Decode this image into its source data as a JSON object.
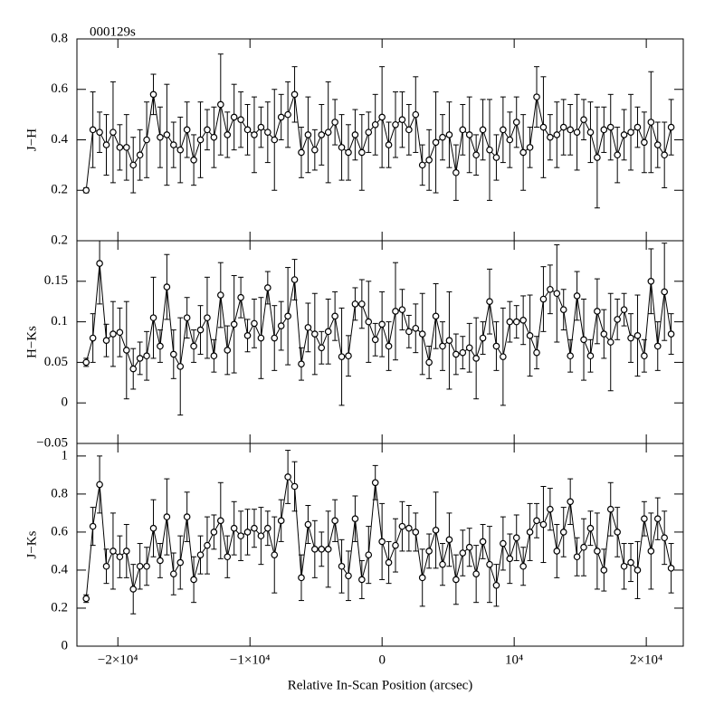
{
  "chart_data": [
    {
      "type": "errorbar",
      "title": "000129s",
      "ylabel": "J−H",
      "color": "#000000",
      "xlim": [
        -23100,
        22800
      ],
      "ylim": [
        0,
        0.8
      ],
      "yticks": [
        0.2,
        0.4,
        0.6,
        0.8
      ],
      "x": [
        -22400,
        -21891,
        -21382,
        -20873,
        -20364,
        -19855,
        -19346,
        -18837,
        -18328,
        -17819,
        -17310,
        -16801,
        -16292,
        -15783,
        -15274,
        -14765,
        -14256,
        -13747,
        -13238,
        -12729,
        -12220,
        -11711,
        -11202,
        -10693,
        -10184,
        -9675,
        -9166,
        -8657,
        -8148,
        -7639,
        -7130,
        -6621,
        -6112,
        -5603,
        -5094,
        -4585,
        -4076,
        -3567,
        -3058,
        -2549,
        -2040,
        -1531,
        -1022,
        -513,
        -4,
        505,
        1014,
        1523,
        2032,
        2541,
        3050,
        3559,
        4068,
        4577,
        5086,
        5595,
        6104,
        6613,
        7122,
        7631,
        8140,
        8649,
        9158,
        9667,
        10176,
        10685,
        11194,
        11703,
        12212,
        12721,
        13230,
        13739,
        14248,
        14757,
        15266,
        15775,
        16284,
        16793,
        17302,
        17811,
        18320,
        18829,
        19338,
        19847,
        20356,
        20865,
        21374,
        21883
      ],
      "values": [
        0.2,
        0.44,
        0.43,
        0.38,
        0.43,
        0.37,
        0.37,
        0.3,
        0.34,
        0.4,
        0.58,
        0.41,
        0.42,
        0.38,
        0.36,
        0.44,
        0.32,
        0.4,
        0.44,
        0.41,
        0.54,
        0.42,
        0.49,
        0.48,
        0.44,
        0.42,
        0.45,
        0.43,
        0.4,
        0.49,
        0.5,
        0.58,
        0.35,
        0.42,
        0.36,
        0.42,
        0.43,
        0.47,
        0.37,
        0.35,
        0.42,
        0.35,
        0.43,
        0.46,
        0.49,
        0.38,
        0.46,
        0.48,
        0.44,
        0.5,
        0.3,
        0.32,
        0.39,
        0.41,
        0.42,
        0.27,
        0.44,
        0.42,
        0.34,
        0.44,
        0.36,
        0.33,
        0.44,
        0.4,
        0.47,
        0.35,
        0.37,
        0.57,
        0.45,
        0.41,
        0.42,
        0.45,
        0.44,
        0.43,
        0.48,
        0.43,
        0.33,
        0.44,
        0.45,
        0.34,
        0.42,
        0.43,
        0.45,
        0.39,
        0.47,
        0.38,
        0.34,
        0.45
      ],
      "errors": [
        0.01,
        0.15,
        0.08,
        0.12,
        0.2,
        0.09,
        0.13,
        0.11,
        0.1,
        0.15,
        0.08,
        0.12,
        0.2,
        0.09,
        0.13,
        0.11,
        0.1,
        0.15,
        0.08,
        0.12,
        0.2,
        0.09,
        0.13,
        0.11,
        0.1,
        0.15,
        0.08,
        0.12,
        0.2,
        0.09,
        0.13,
        0.11,
        0.1,
        0.15,
        0.08,
        0.12,
        0.2,
        0.09,
        0.13,
        0.11,
        0.1,
        0.15,
        0.08,
        0.12,
        0.2,
        0.09,
        0.13,
        0.11,
        0.1,
        0.15,
        0.08,
        0.12,
        0.2,
        0.09,
        0.13,
        0.11,
        0.1,
        0.15,
        0.08,
        0.12,
        0.2,
        0.09,
        0.13,
        0.11,
        0.1,
        0.15,
        0.08,
        0.12,
        0.2,
        0.09,
        0.13,
        0.11,
        0.1,
        0.15,
        0.08,
        0.12,
        0.2,
        0.09,
        0.13,
        0.11,
        0.1,
        0.15,
        0.08,
        0.12,
        0.2,
        0.09,
        0.13,
        0.11
      ]
    },
    {
      "type": "errorbar",
      "ylabel": "H−Ks",
      "color": "#000000",
      "xlim": [
        -23100,
        22800
      ],
      "ylim": [
        -0.05,
        0.2
      ],
      "yticks": [
        {
          "value": -0.05,
          "label": "−0.05"
        },
        0,
        0.05,
        0.1,
        0.15,
        0.2
      ],
      "x": [
        -22400,
        -21891,
        -21382,
        -20873,
        -20364,
        -19855,
        -19346,
        -18837,
        -18328,
        -17819,
        -17310,
        -16801,
        -16292,
        -15783,
        -15274,
        -14765,
        -14256,
        -13747,
        -13238,
        -12729,
        -12220,
        -11711,
        -11202,
        -10693,
        -10184,
        -9675,
        -9166,
        -8657,
        -8148,
        -7639,
        -7130,
        -6621,
        -6112,
        -5603,
        -5094,
        -4585,
        -4076,
        -3567,
        -3058,
        -2549,
        -2040,
        -1531,
        -1022,
        -513,
        -4,
        505,
        1014,
        1523,
        2032,
        2541,
        3050,
        3559,
        4068,
        4577,
        5086,
        5595,
        6104,
        6613,
        7122,
        7631,
        8140,
        8649,
        9158,
        9667,
        10176,
        10685,
        11194,
        11703,
        12212,
        12721,
        13230,
        13739,
        14248,
        14757,
        15266,
        15775,
        16284,
        16793,
        17302,
        17811,
        18320,
        18829,
        19338,
        19847,
        20356,
        20865,
        21374,
        21883
      ],
      "values": [
        0.05,
        0.08,
        0.172,
        0.077,
        0.085,
        0.087,
        0.065,
        0.042,
        0.055,
        0.058,
        0.105,
        0.07,
        0.143,
        0.06,
        0.045,
        0.105,
        0.07,
        0.09,
        0.105,
        0.058,
        0.133,
        0.065,
        0.097,
        0.13,
        0.083,
        0.098,
        0.08,
        0.142,
        0.08,
        0.095,
        0.107,
        0.152,
        0.048,
        0.093,
        0.085,
        0.068,
        0.088,
        0.107,
        0.057,
        0.058,
        0.122,
        0.122,
        0.1,
        0.078,
        0.097,
        0.07,
        0.113,
        0.115,
        0.088,
        0.092,
        0.085,
        0.05,
        0.107,
        0.07,
        0.077,
        0.06,
        0.062,
        0.068,
        0.055,
        0.08,
        0.125,
        0.07,
        0.057,
        0.1,
        0.1,
        0.102,
        0.083,
        0.062,
        0.128,
        0.14,
        0.135,
        0.115,
        0.058,
        0.132,
        0.078,
        0.058,
        0.113,
        0.085,
        0.075,
        0.103,
        0.115,
        0.08,
        0.083,
        0.058,
        0.15,
        0.07,
        0.137,
        0.085
      ],
      "errors": [
        0.005,
        0.03,
        0.05,
        0.02,
        0.04,
        0.03,
        0.06,
        0.025,
        0.02,
        0.03,
        0.05,
        0.02,
        0.04,
        0.03,
        0.06,
        0.025,
        0.02,
        0.03,
        0.05,
        0.02,
        0.04,
        0.03,
        0.06,
        0.025,
        0.02,
        0.03,
        0.05,
        0.02,
        0.04,
        0.03,
        0.06,
        0.025,
        0.02,
        0.03,
        0.05,
        0.02,
        0.04,
        0.03,
        0.06,
        0.025,
        0.02,
        0.03,
        0.05,
        0.02,
        0.04,
        0.03,
        0.06,
        0.025,
        0.02,
        0.03,
        0.05,
        0.02,
        0.04,
        0.03,
        0.06,
        0.025,
        0.02,
        0.03,
        0.05,
        0.02,
        0.04,
        0.03,
        0.06,
        0.025,
        0.02,
        0.03,
        0.05,
        0.02,
        0.04,
        0.03,
        0.06,
        0.025,
        0.02,
        0.03,
        0.05,
        0.02,
        0.04,
        0.03,
        0.06,
        0.025,
        0.02,
        0.03,
        0.05,
        0.02,
        0.04,
        0.03,
        0.06,
        0.025
      ]
    },
    {
      "type": "errorbar",
      "ylabel": "J−Ks",
      "xlabel": "Relative In-Scan Position (arcsec)",
      "color": "#000000",
      "xlim": [
        -23100,
        22800
      ],
      "ylim": [
        0,
        1.066
      ],
      "yticks": [
        0,
        0.2,
        0.4,
        0.6,
        0.8,
        1
      ],
      "xticks": [
        {
          "value": -20000,
          "label": "−2×10⁴"
        },
        {
          "value": -10000,
          "label": "−1×10⁴"
        },
        0,
        {
          "value": 10000,
          "label": "10⁴"
        },
        {
          "value": 20000,
          "label": "2×10⁴"
        }
      ],
      "x": [
        -22400,
        -21891,
        -21382,
        -20873,
        -20364,
        -19855,
        -19346,
        -18837,
        -18328,
        -17819,
        -17310,
        -16801,
        -16292,
        -15783,
        -15274,
        -14765,
        -14256,
        -13747,
        -13238,
        -12729,
        -12220,
        -11711,
        -11202,
        -10693,
        -10184,
        -9675,
        -9166,
        -8657,
        -8148,
        -7639,
        -7130,
        -6621,
        -6112,
        -5603,
        -5094,
        -4585,
        -4076,
        -3567,
        -3058,
        -2549,
        -2040,
        -1531,
        -1022,
        -513,
        -4,
        505,
        1014,
        1523,
        2032,
        2541,
        3050,
        3559,
        4068,
        4577,
        5086,
        5595,
        6104,
        6613,
        7122,
        7631,
        8140,
        8649,
        9158,
        9667,
        10176,
        10685,
        11194,
        11703,
        12212,
        12721,
        13230,
        13739,
        14248,
        14757,
        15266,
        15775,
        16284,
        16793,
        17302,
        17811,
        18320,
        18829,
        19338,
        19847,
        20356,
        20865,
        21374,
        21883
      ],
      "values": [
        0.25,
        0.63,
        0.85,
        0.42,
        0.5,
        0.47,
        0.5,
        0.3,
        0.42,
        0.42,
        0.62,
        0.45,
        0.68,
        0.38,
        0.44,
        0.68,
        0.35,
        0.48,
        0.53,
        0.6,
        0.66,
        0.47,
        0.62,
        0.58,
        0.6,
        0.62,
        0.58,
        0.62,
        0.48,
        0.66,
        0.89,
        0.84,
        0.36,
        0.64,
        0.51,
        0.51,
        0.51,
        0.66,
        0.42,
        0.37,
        0.67,
        0.35,
        0.48,
        0.86,
        0.55,
        0.44,
        0.53,
        0.63,
        0.62,
        0.6,
        0.36,
        0.5,
        0.61,
        0.43,
        0.56,
        0.35,
        0.49,
        0.52,
        0.38,
        0.55,
        0.43,
        0.32,
        0.54,
        0.46,
        0.57,
        0.42,
        0.6,
        0.66,
        0.64,
        0.72,
        0.5,
        0.6,
        0.76,
        0.47,
        0.52,
        0.62,
        0.5,
        0.4,
        0.72,
        0.6,
        0.42,
        0.44,
        0.4,
        0.67,
        0.5,
        0.67,
        0.57,
        0.41
      ],
      "errors": [
        0.02,
        0.1,
        0.15,
        0.09,
        0.2,
        0.11,
        0.14,
        0.13,
        0.12,
        0.1,
        0.15,
        0.09,
        0.2,
        0.11,
        0.14,
        0.13,
        0.12,
        0.1,
        0.15,
        0.09,
        0.2,
        0.11,
        0.14,
        0.13,
        0.12,
        0.1,
        0.15,
        0.09,
        0.2,
        0.11,
        0.14,
        0.13,
        0.12,
        0.1,
        0.15,
        0.09,
        0.2,
        0.11,
        0.14,
        0.13,
        0.12,
        0.1,
        0.15,
        0.09,
        0.2,
        0.11,
        0.14,
        0.13,
        0.12,
        0.1,
        0.15,
        0.09,
        0.2,
        0.11,
        0.14,
        0.13,
        0.12,
        0.1,
        0.15,
        0.09,
        0.2,
        0.11,
        0.14,
        0.13,
        0.12,
        0.1,
        0.15,
        0.09,
        0.2,
        0.11,
        0.14,
        0.13,
        0.12,
        0.1,
        0.15,
        0.09,
        0.2,
        0.11,
        0.14,
        0.13,
        0.12,
        0.1,
        0.15,
        0.09,
        0.2,
        0.11,
        0.14,
        0.13
      ]
    }
  ]
}
